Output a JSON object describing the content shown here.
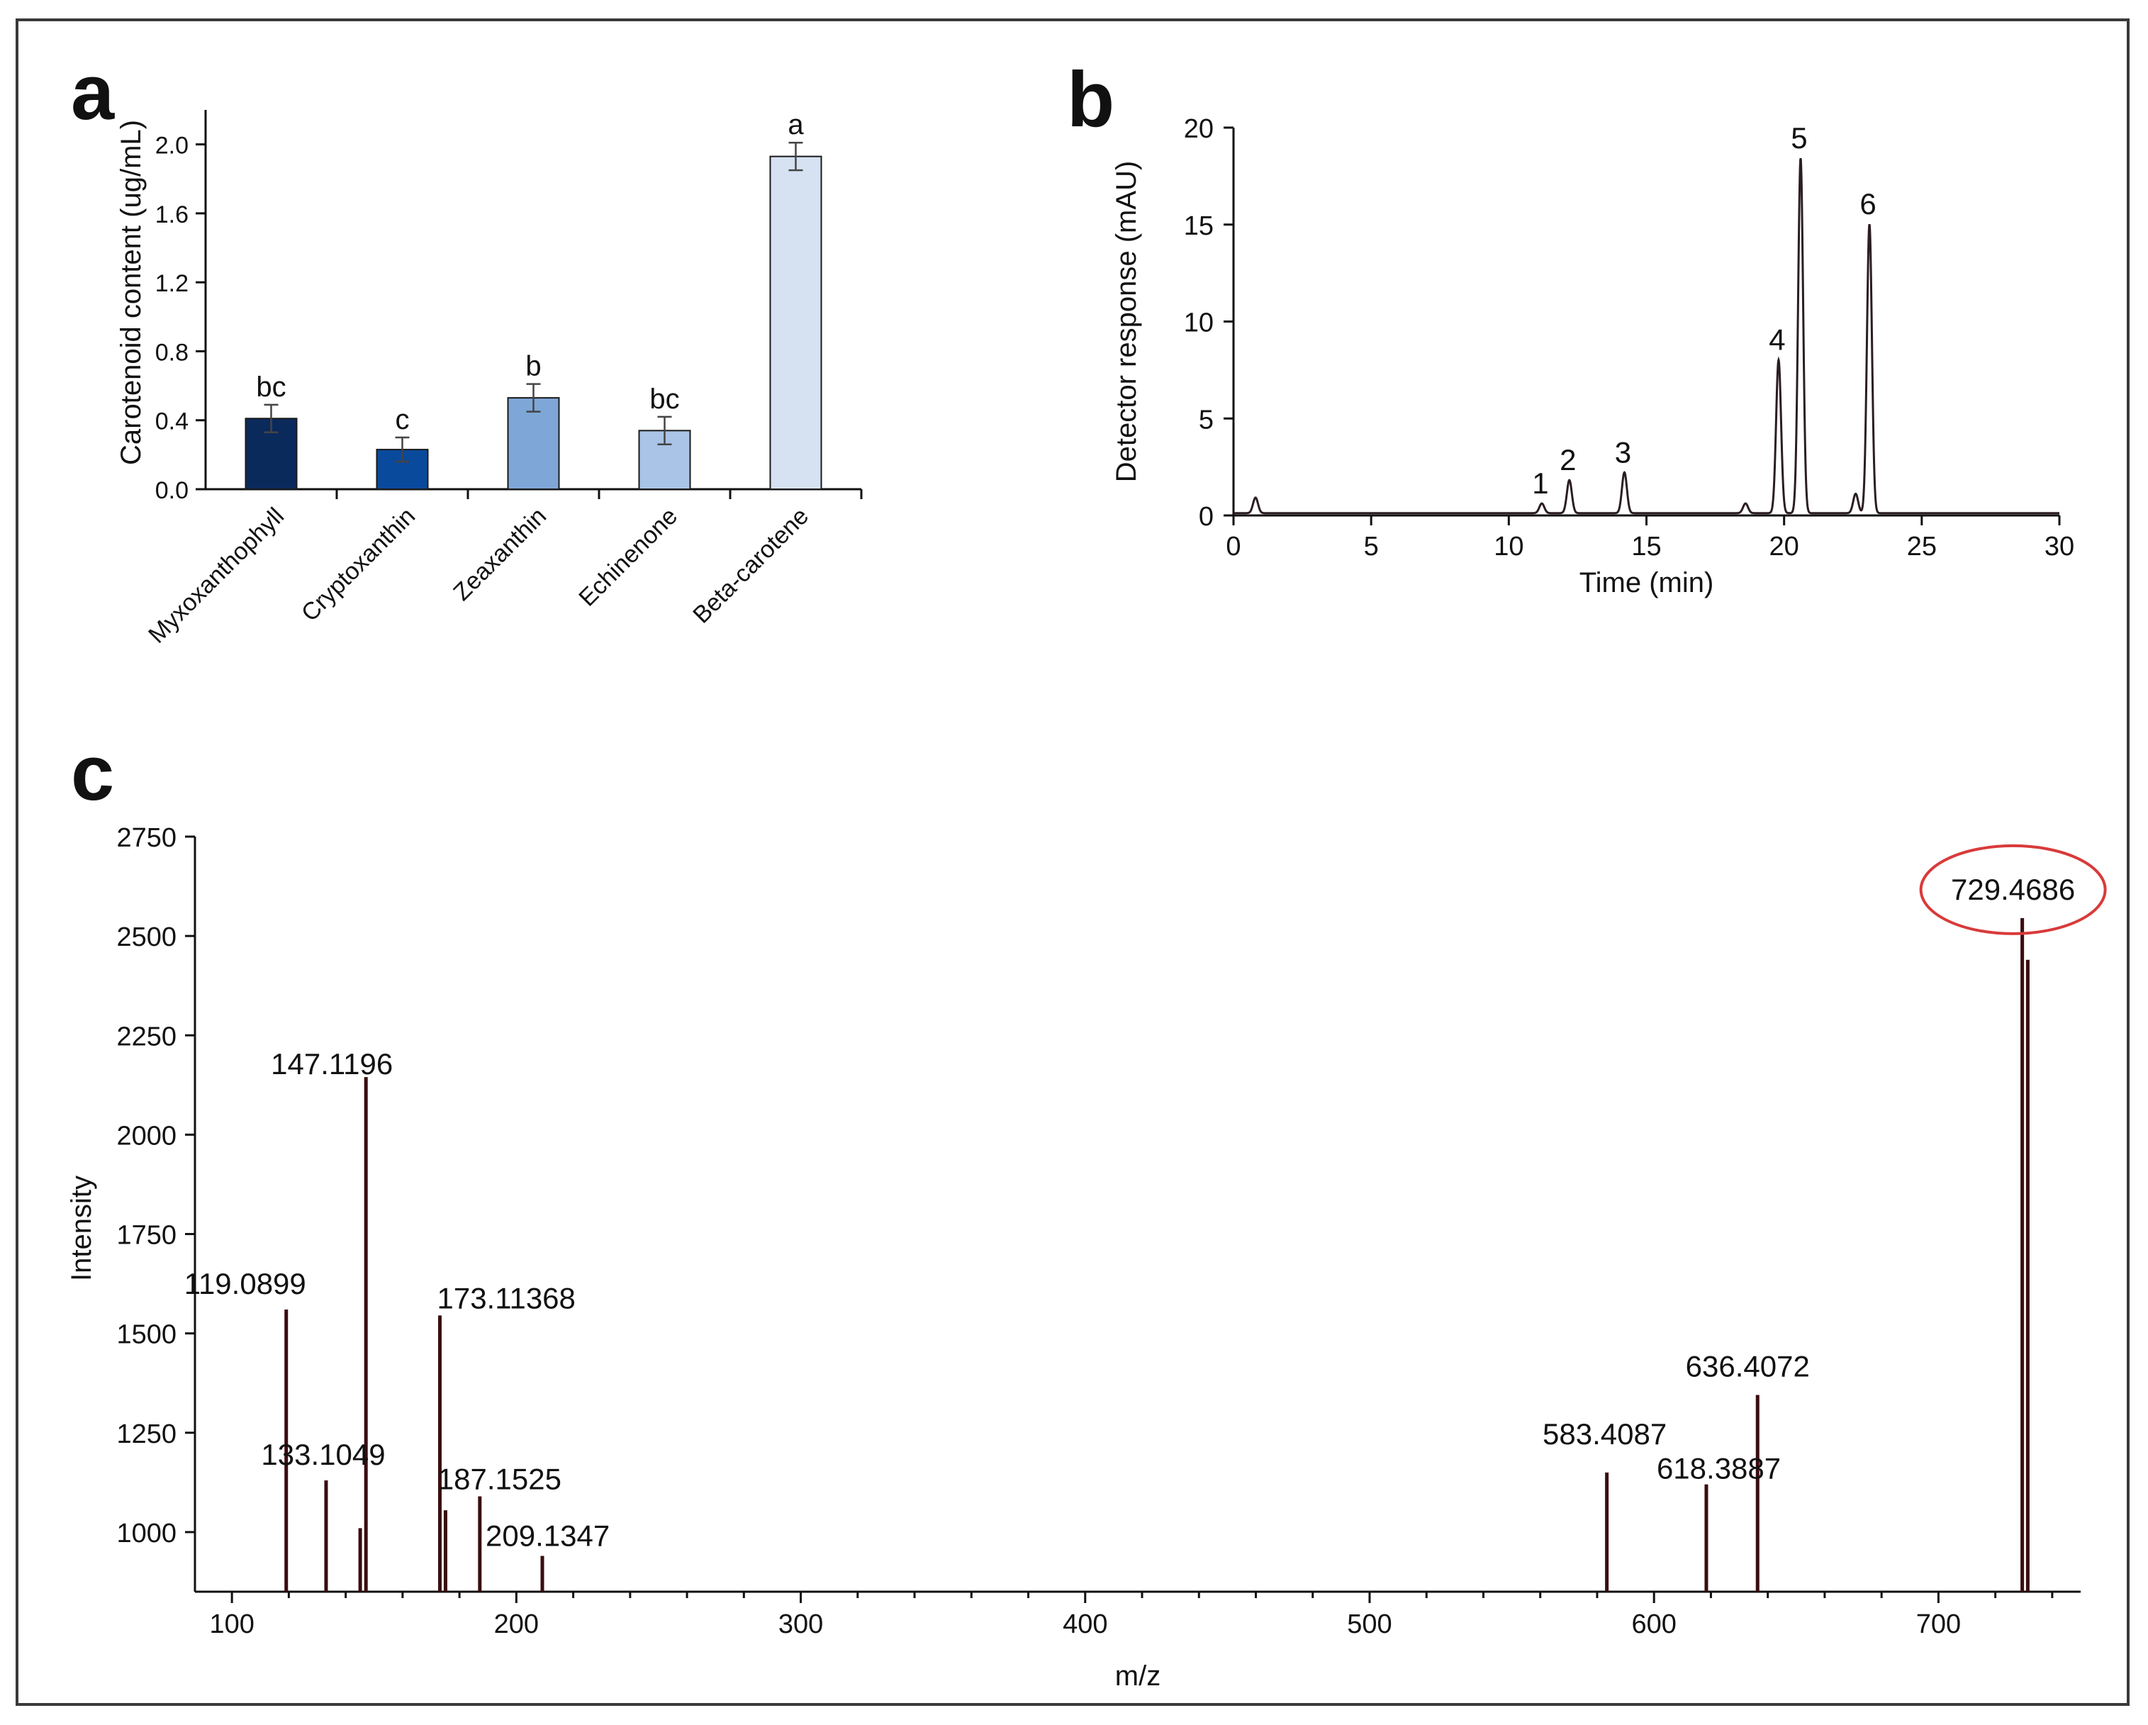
{
  "colors": {
    "axis": "#111111",
    "chromatogram": "#2b1d22",
    "ms_peak": "#3a0d10",
    "highlight": "#d93a3a",
    "bars": [
      "#0b2a5c",
      "#0a4a9c",
      "#7ea7d8",
      "#a9c4e6",
      "#d6e2f2"
    ]
  },
  "chart_data": [
    {
      "panel": "a",
      "type": "bar",
      "title": "",
      "xlabel": "",
      "ylabel": "Carotenoid content (ug/mL)",
      "categories": [
        "Myxoxanthophyll",
        "Cryptoxanthin",
        "Zeaxanthin",
        "Echinenone",
        "Beta-carotene"
      ],
      "values": [
        0.41,
        0.23,
        0.53,
        0.34,
        1.93
      ],
      "errors": [
        0.08,
        0.07,
        0.08,
        0.08,
        0.08
      ],
      "significance": [
        "bc",
        "c",
        "b",
        "bc",
        "a"
      ],
      "ylim": [
        0,
        2.2
      ],
      "yticks": [
        "0.0",
        "0.4",
        "0.8",
        "1.2",
        "1.6",
        "2.0"
      ],
      "grid": false
    },
    {
      "panel": "b",
      "type": "line",
      "title": "",
      "xlabel": "Time (min)",
      "ylabel": "Detector response (mAU)",
      "xlim": [
        0,
        30
      ],
      "ylim": [
        0,
        20
      ],
      "xticks": [
        "0",
        "5",
        "10",
        "15",
        "20",
        "25",
        "30"
      ],
      "yticks": [
        "0",
        "5",
        "10",
        "15",
        "20"
      ],
      "peaks": [
        {
          "time": 0.8,
          "height": 0.8,
          "label": ""
        },
        {
          "time": 11.2,
          "height": 0.5,
          "label": "1"
        },
        {
          "time": 12.2,
          "height": 1.7,
          "label": "2"
        },
        {
          "time": 14.2,
          "height": 2.1,
          "label": "3"
        },
        {
          "time": 18.6,
          "height": 0.5,
          "label": ""
        },
        {
          "time": 19.8,
          "height": 7.9,
          "label": "4"
        },
        {
          "time": 20.6,
          "height": 18.3,
          "label": "5"
        },
        {
          "time": 22.6,
          "height": 1.0,
          "label": ""
        },
        {
          "time": 23.1,
          "height": 14.9,
          "label": "6"
        }
      ],
      "grid": false
    },
    {
      "panel": "c",
      "type": "bar",
      "subtype": "mass-spectrum",
      "title": "",
      "xlabel": "m/z",
      "ylabel": "Intensity",
      "xlim": [
        87,
        750
      ],
      "ylim": [
        850,
        2750
      ],
      "xticks": [
        "100",
        "200",
        "300",
        "400",
        "500",
        "600",
        "700"
      ],
      "yticks": [
        "1000",
        "1250",
        "1500",
        "1750",
        "2000",
        "2250",
        "2500",
        "2750"
      ],
      "peaks": [
        {
          "mz": 119.0899,
          "intensity": 1560,
          "label": "119.0899"
        },
        {
          "mz": 133.1049,
          "intensity": 1130,
          "label": "133.1049"
        },
        {
          "mz": 145.1,
          "intensity": 1010,
          "label": ""
        },
        {
          "mz": 147.1196,
          "intensity": 2145,
          "label": "147.1196"
        },
        {
          "mz": 173.11368,
          "intensity": 1545,
          "label": "173.11368"
        },
        {
          "mz": 175.1,
          "intensity": 1055,
          "label": ""
        },
        {
          "mz": 187.1525,
          "intensity": 1090,
          "label": "187.1525"
        },
        {
          "mz": 209.1347,
          "intensity": 940,
          "label": "209.1347"
        },
        {
          "mz": 583.4087,
          "intensity": 1150,
          "label": "583.4087"
        },
        {
          "mz": 618.3887,
          "intensity": 1120,
          "label": "618.3887"
        },
        {
          "mz": 636.4072,
          "intensity": 1345,
          "label": "636.4072"
        },
        {
          "mz": 729.4686,
          "intensity": 2545,
          "label": "729.4686",
          "highlight": true
        },
        {
          "mz": 731.4,
          "intensity": 2440,
          "label": ""
        }
      ],
      "grid": false
    }
  ]
}
